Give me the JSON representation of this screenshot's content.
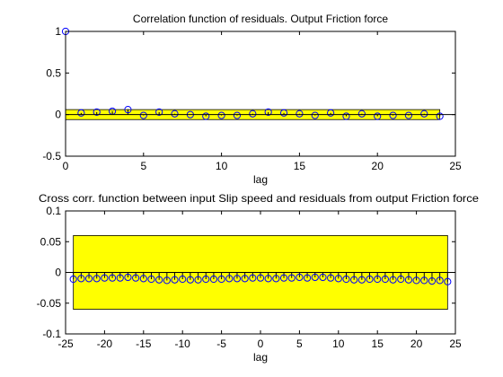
{
  "colors": {
    "background": "#ffffff",
    "axes_face": "#ffffff",
    "confidence_band": "#ffff00",
    "stem_marker": "#0000ff",
    "stem_line": "#000000",
    "zero_line": "#000000"
  },
  "chart_data": [
    {
      "type": "stem",
      "title": "Correlation function of residuals. Output Friction force",
      "xlabel": "lag",
      "ylabel": "",
      "xlim": [
        0,
        25
      ],
      "ylim": [
        -0.5,
        1
      ],
      "xticks": [
        0,
        5,
        10,
        15,
        20,
        25
      ],
      "yticks": [
        -0.5,
        0,
        0.5,
        1
      ],
      "xtick_labels": [
        "0",
        "5",
        "10",
        "15",
        "20",
        "25"
      ],
      "ytick_labels": [
        "-0.5",
        "0",
        "0.5",
        "1"
      ],
      "grid": false,
      "legend": "none",
      "confidence_band": {
        "x_range": [
          0,
          24
        ],
        "y_range": [
          -0.06,
          0.06
        ]
      },
      "series": [
        {
          "x": [
            0,
            1,
            2,
            3,
            4,
            5,
            6,
            7,
            8,
            9,
            10,
            11,
            12,
            13,
            14,
            15,
            16,
            17,
            18,
            19,
            20,
            21,
            22,
            23,
            24
          ],
          "values": [
            1.0,
            0.02,
            0.03,
            0.04,
            0.06,
            -0.01,
            0.03,
            0.01,
            0.0,
            -0.02,
            -0.01,
            -0.01,
            0.01,
            0.03,
            0.02,
            0.01,
            -0.01,
            0.02,
            -0.02,
            0.01,
            -0.02,
            -0.01,
            -0.01,
            0.01,
            -0.02
          ]
        }
      ]
    },
    {
      "type": "stem",
      "title": "Cross corr. function between input Slip speed and residuals from output Friction force",
      "xlabel": "lag",
      "ylabel": "",
      "xlim": [
        -25,
        25
      ],
      "ylim": [
        -0.1,
        0.1
      ],
      "xticks": [
        -25,
        -20,
        -15,
        -10,
        -5,
        0,
        5,
        10,
        15,
        20,
        25
      ],
      "yticks": [
        -0.1,
        -0.05,
        0,
        0.05,
        0.1
      ],
      "xtick_labels": [
        "-25",
        "-20",
        "-15",
        "-10",
        "-5",
        "0",
        "5",
        "10",
        "15",
        "20",
        "25"
      ],
      "ytick_labels": [
        "-0.1",
        "-0.05",
        "0",
        "0.05",
        "0.1"
      ],
      "grid": false,
      "legend": "none",
      "confidence_band": {
        "x_range": [
          -24,
          24
        ],
        "y_range": [
          -0.06,
          0.06
        ]
      },
      "series": [
        {
          "x": [
            -24,
            -23,
            -22,
            -21,
            -20,
            -19,
            -18,
            -17,
            -16,
            -15,
            -14,
            -13,
            -12,
            -11,
            -10,
            -9,
            -8,
            -7,
            -6,
            -5,
            -4,
            -3,
            -2,
            -1,
            0,
            1,
            2,
            3,
            4,
            5,
            6,
            7,
            8,
            9,
            10,
            11,
            12,
            13,
            14,
            15,
            16,
            17,
            18,
            19,
            20,
            21,
            22,
            23,
            24
          ],
          "values": [
            -0.011,
            -0.01,
            -0.01,
            -0.01,
            -0.009,
            -0.009,
            -0.009,
            -0.008,
            -0.009,
            -0.01,
            -0.011,
            -0.012,
            -0.013,
            -0.012,
            -0.011,
            -0.012,
            -0.012,
            -0.011,
            -0.011,
            -0.011,
            -0.01,
            -0.01,
            -0.01,
            -0.009,
            -0.009,
            -0.01,
            -0.01,
            -0.009,
            -0.009,
            -0.008,
            -0.009,
            -0.008,
            -0.008,
            -0.009,
            -0.01,
            -0.011,
            -0.012,
            -0.012,
            -0.011,
            -0.011,
            -0.011,
            -0.012,
            -0.011,
            -0.012,
            -0.013,
            -0.013,
            -0.014,
            -0.013,
            -0.015
          ]
        }
      ]
    }
  ]
}
